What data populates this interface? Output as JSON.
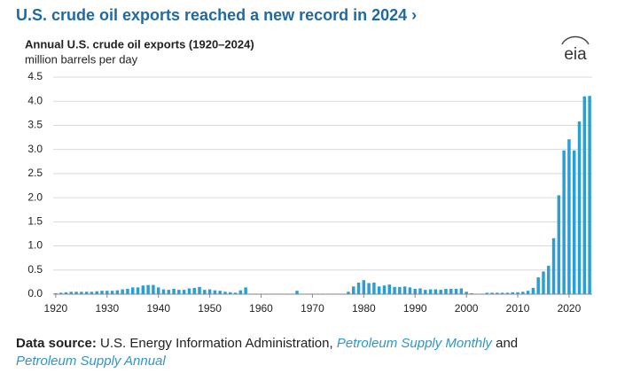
{
  "chart_data": {
    "type": "bar",
    "headline": "U.S. crude oil exports reached a new record in 2024 ›",
    "title": "Annual U.S. crude oil exports (1920–2024)",
    "subtitle": "million barrels per day",
    "logo": "eia",
    "color": "#2a9fd6",
    "grid": true,
    "x": [
      1920,
      1921,
      1922,
      1923,
      1924,
      1925,
      1926,
      1927,
      1928,
      1929,
      1930,
      1931,
      1932,
      1933,
      1934,
      1935,
      1936,
      1937,
      1938,
      1939,
      1940,
      1941,
      1942,
      1943,
      1944,
      1945,
      1946,
      1947,
      1948,
      1949,
      1950,
      1951,
      1952,
      1953,
      1954,
      1955,
      1956,
      1957,
      1958,
      1959,
      1960,
      1961,
      1962,
      1963,
      1964,
      1965,
      1966,
      1967,
      1968,
      1969,
      1970,
      1971,
      1972,
      1973,
      1974,
      1975,
      1976,
      1977,
      1978,
      1979,
      1980,
      1981,
      1982,
      1983,
      1984,
      1985,
      1986,
      1987,
      1988,
      1989,
      1990,
      1991,
      1992,
      1993,
      1994,
      1995,
      1996,
      1997,
      1998,
      1999,
      2000,
      2001,
      2002,
      2003,
      2004,
      2005,
      2006,
      2007,
      2008,
      2009,
      2010,
      2011,
      2012,
      2013,
      2014,
      2015,
      2016,
      2017,
      2018,
      2019,
      2020,
      2021,
      2022,
      2023,
      2024
    ],
    "values": [
      0.02,
      0.03,
      0.04,
      0.05,
      0.05,
      0.05,
      0.05,
      0.05,
      0.06,
      0.07,
      0.07,
      0.07,
      0.08,
      0.1,
      0.11,
      0.14,
      0.14,
      0.18,
      0.19,
      0.19,
      0.14,
      0.1,
      0.09,
      0.11,
      0.09,
      0.09,
      0.12,
      0.13,
      0.15,
      0.09,
      0.1,
      0.08,
      0.07,
      0.05,
      0.04,
      0.03,
      0.08,
      0.14,
      0.01,
      0.01,
      0.01,
      0.01,
      0.01,
      0.01,
      0.01,
      0.01,
      0.01,
      0.07,
      0.01,
      0.01,
      0.01,
      0.01,
      0.01,
      0.01,
      0.01,
      0.01,
      0.01,
      0.05,
      0.16,
      0.24,
      0.29,
      0.23,
      0.24,
      0.16,
      0.18,
      0.2,
      0.15,
      0.15,
      0.16,
      0.14,
      0.11,
      0.12,
      0.09,
      0.1,
      0.1,
      0.09,
      0.11,
      0.11,
      0.11,
      0.12,
      0.05,
      0.02,
      0.01,
      0.01,
      0.03,
      0.03,
      0.03,
      0.03,
      0.03,
      0.04,
      0.04,
      0.05,
      0.07,
      0.13,
      0.35,
      0.47,
      0.59,
      1.16,
      2.05,
      2.98,
      3.21,
      2.98,
      3.58,
      4.1,
      4.11
    ],
    "xlim": [
      1919.5,
      2024.5
    ],
    "xticks": [
      1920,
      1930,
      1940,
      1950,
      1960,
      1970,
      1980,
      1990,
      2000,
      2010,
      2020
    ],
    "ylim": [
      0,
      4.5
    ],
    "yticks": [
      {
        "value": 0,
        "label": "0.0"
      },
      0.5,
      {
        "value": 1,
        "label": "1.0"
      },
      1.5,
      {
        "value": 2,
        "label": "2.0"
      },
      2.5,
      {
        "value": 3,
        "label": "3.0"
      },
      3.5,
      {
        "value": 4,
        "label": "4.0"
      },
      4.5
    ],
    "source": {
      "label": "Data source:",
      "text": "U.S. Energy Information Administration,",
      "link1": "Petroleum Supply Monthly",
      "conjunction": "and",
      "link2": "Petroleum Supply Annual"
    }
  }
}
